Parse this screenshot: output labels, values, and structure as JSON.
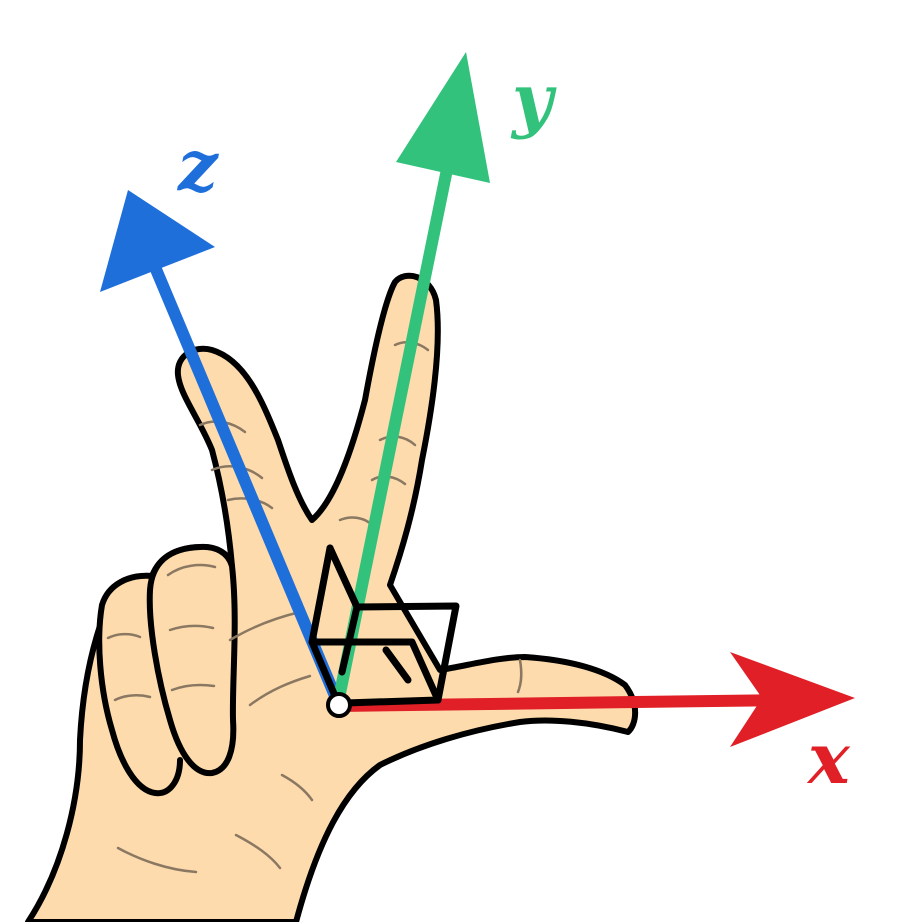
{
  "axes": {
    "x": {
      "label": "x",
      "color": "#e01f26"
    },
    "y": {
      "label": "y",
      "color": "#32c27c"
    },
    "z": {
      "label": "z",
      "color": "#1e6fda"
    }
  },
  "colors": {
    "skin": "#fddbac",
    "outline": "#000000",
    "crease": "#8a7863",
    "origin": "#ffffff"
  },
  "icons": {
    "hand": "right-hand-icon",
    "right_angle": "right-angle-marker-icon"
  }
}
